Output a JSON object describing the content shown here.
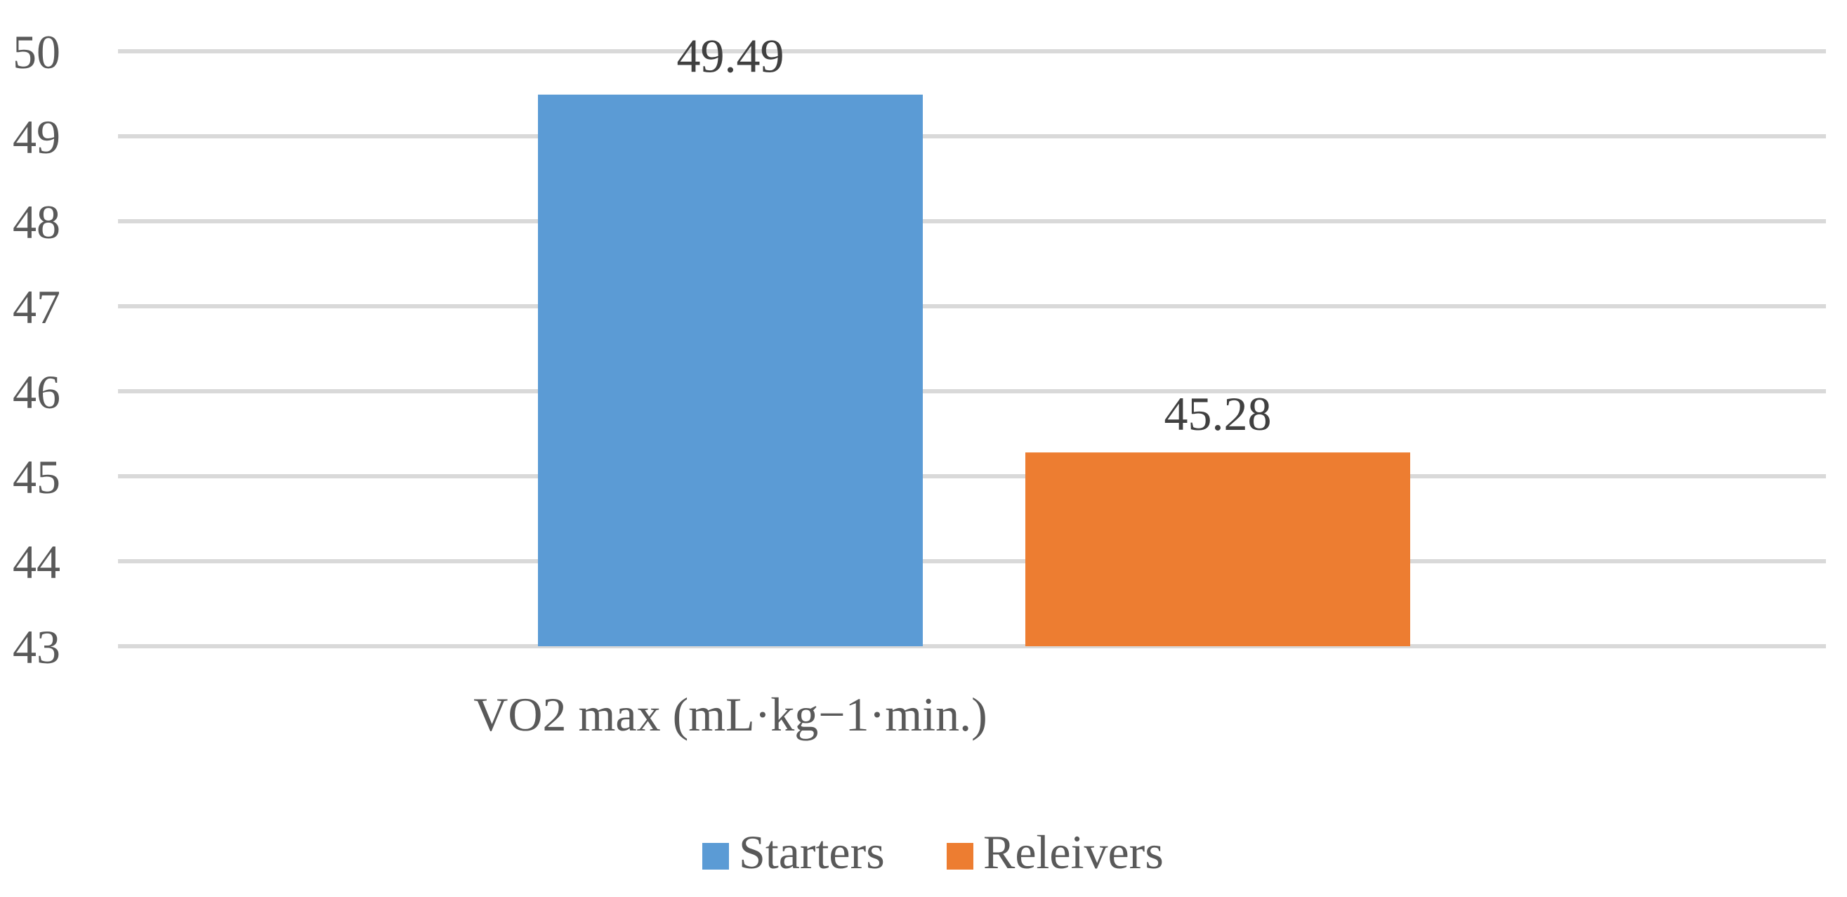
{
  "chart_data": {
    "type": "bar",
    "categories": [
      "VO2 max (mL·kg−1·min.)"
    ],
    "series": [
      {
        "name": "Starters",
        "values": [
          49.49
        ],
        "color": "#5b9bd5"
      },
      {
        "name": "Releivers",
        "values": [
          45.28
        ],
        "color": "#ed7d31"
      }
    ],
    "title": "",
    "xlabel": "",
    "ylabel": "",
    "ylim": [
      43,
      50
    ],
    "yticks": [
      "43",
      "44",
      "45",
      "46",
      "47",
      "48",
      "49",
      "50"
    ],
    "data_labels": [
      "49.49",
      "45.28"
    ],
    "grid": true,
    "legend_position": "bottom"
  }
}
